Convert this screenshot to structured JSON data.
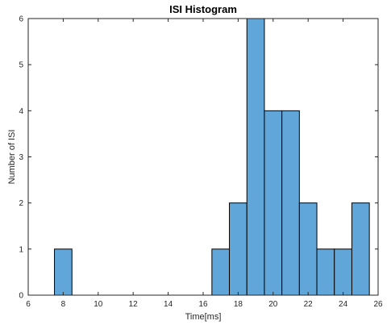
{
  "chart_data": {
    "type": "bar",
    "title": "ISI Histogram",
    "xlabel": "Time[ms]",
    "ylabel": "Number of ISI",
    "xlim": [
      6,
      26
    ],
    "ylim": [
      0,
      6
    ],
    "xticks": [
      6,
      8,
      10,
      12,
      14,
      16,
      18,
      20,
      22,
      24,
      26
    ],
    "yticks": [
      0,
      1,
      2,
      3,
      4,
      5,
      6
    ],
    "bin_width": 1,
    "bins": [
      {
        "start": 7.5,
        "count": 1
      },
      {
        "start": 16.5,
        "count": 1
      },
      {
        "start": 17.5,
        "count": 2
      },
      {
        "start": 18.5,
        "count": 6
      },
      {
        "start": 19.5,
        "count": 4
      },
      {
        "start": 20.5,
        "count": 4
      },
      {
        "start": 21.5,
        "count": 2
      },
      {
        "start": 22.5,
        "count": 1
      },
      {
        "start": 23.5,
        "count": 1
      },
      {
        "start": 24.5,
        "count": 2
      }
    ],
    "bar_color": "#61a6d8",
    "edge_color": "#000000",
    "grid": false
  }
}
